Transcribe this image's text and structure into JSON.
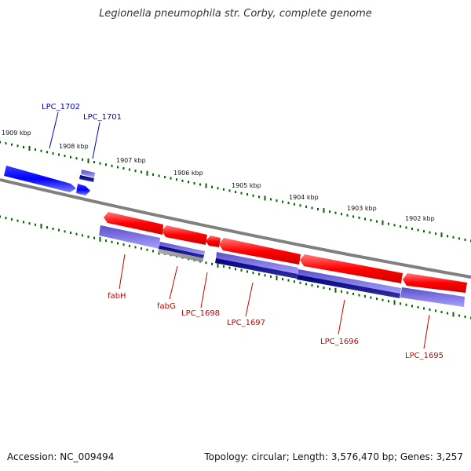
{
  "title": "Legionella pneumophila str. Corby, complete genome",
  "footer": {
    "accession": "Accession: NC_009494",
    "topology": "Topology: circular; Length: 3,576,470 bp; Genes: 3,257"
  },
  "kbp_labels": [
    "1909 kbp",
    "1908 kbp",
    "1907 kbp",
    "1906 kbp",
    "1905 kbp",
    "1904 kbp",
    "1903 kbp",
    "1902 kbp"
  ],
  "gene_labels": {
    "forward": [
      "LPC_1702",
      "LPC_1701"
    ],
    "reverse": [
      "fabH",
      "fabG",
      "LPC_1698",
      "LPC_1697",
      "LPC_1696",
      "LPC_1695"
    ]
  },
  "colors": {
    "forward_strand": "#0000ff",
    "reverse_strand": "#ff0000",
    "forward_label": "#0000cc",
    "reverse_label": "#cc0000",
    "tick": "#006600",
    "backbone": "#808080"
  }
}
